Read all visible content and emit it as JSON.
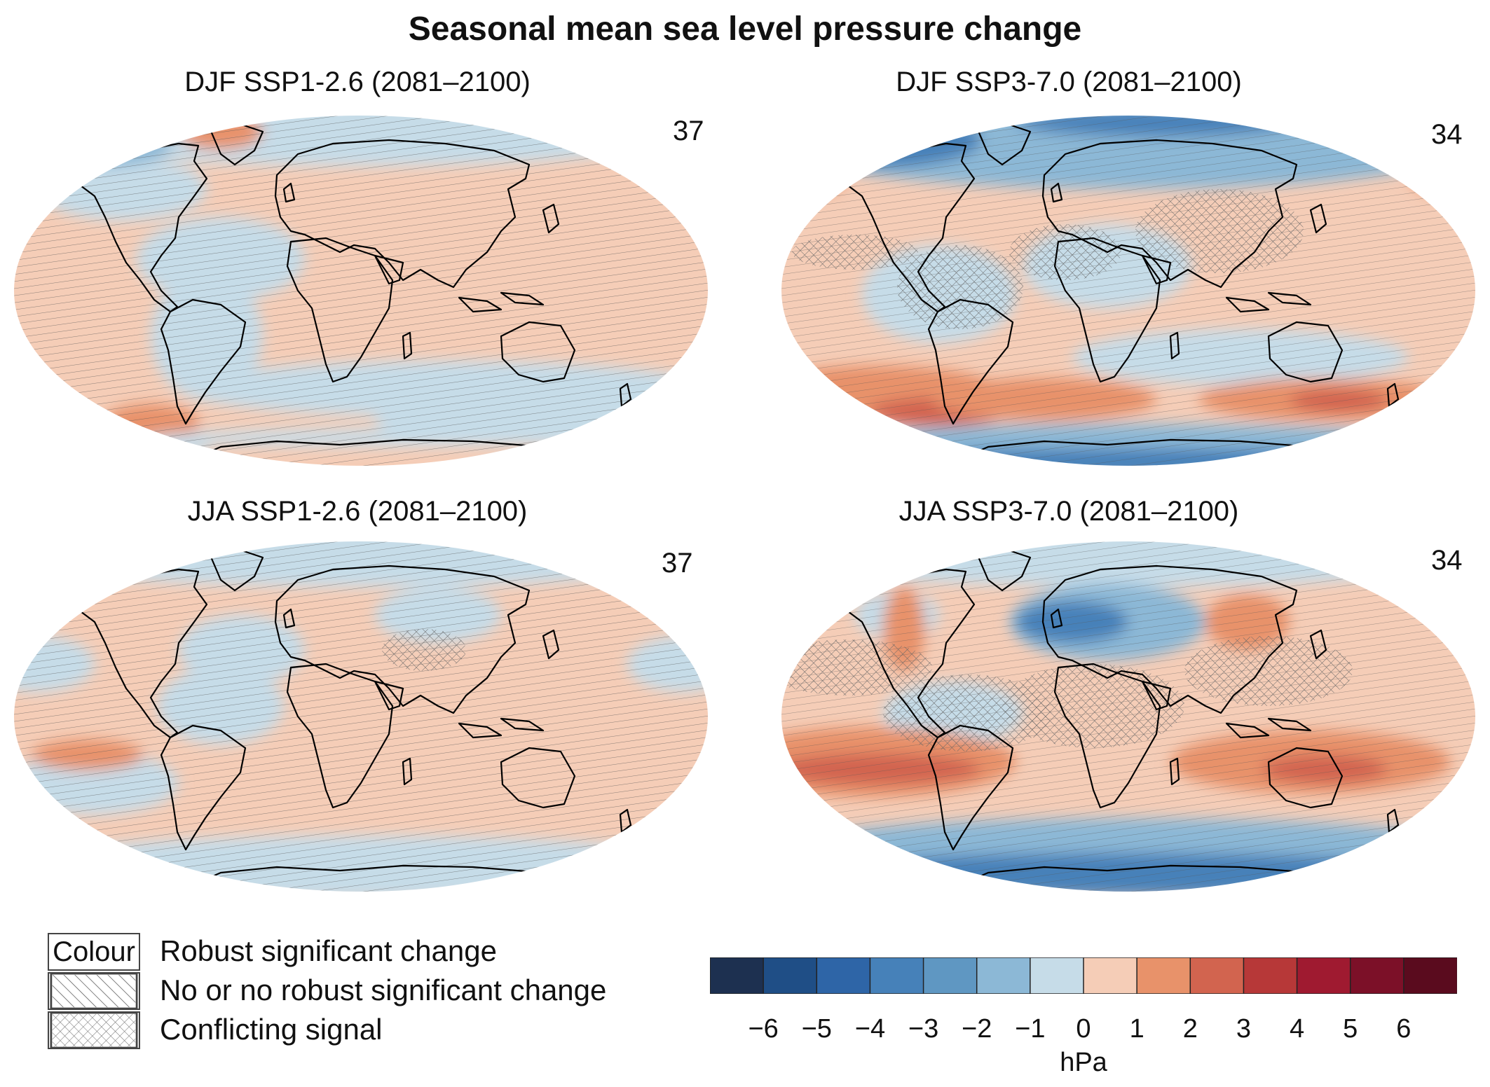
{
  "title": "Seasonal mean sea level pressure change",
  "panels": [
    {
      "title": "DJF SSP1-2.6 (2081–2100)",
      "model_count": "37",
      "scenario": "low"
    },
    {
      "title": "DJF SSP3-7.0 (2081–2100)",
      "model_count": "34",
      "scenario": "high"
    },
    {
      "title": "JJA SSP1-2.6 (2081–2100)",
      "model_count": "37",
      "scenario": "low"
    },
    {
      "title": "JJA SSP3-7.0 (2081–2100)",
      "model_count": "34",
      "scenario": "high"
    }
  ],
  "legend": {
    "colour_swatch_text": "Colour",
    "items": [
      {
        "label": "Robust significant change",
        "pattern": "plain"
      },
      {
        "label": "No or no robust significant change",
        "pattern": "diagonal-hatch"
      },
      {
        "label": "Conflicting signal",
        "pattern": "cross-hatch"
      }
    ]
  },
  "colorbar": {
    "unit": "hPa",
    "ticks": [
      "−6",
      "−5",
      "−4",
      "−3",
      "−2",
      "−1",
      "0",
      "1",
      "2",
      "3",
      "4",
      "5",
      "6"
    ],
    "colors": [
      "#1d3050",
      "#1f4e86",
      "#2e65a7",
      "#4681b9",
      "#5f97c2",
      "#8cb8d6",
      "#c6dce8",
      "#f5cdb7",
      "#e8926a",
      "#d2644f",
      "#b73838",
      "#9f1a30",
      "#7c1028",
      "#5a0b1e"
    ]
  },
  "colors": {
    "ocean_light_blue": "#c6dce8",
    "light_red": "#f5cdb7",
    "medium_red": "#e8926a",
    "dark_red": "#d2644f",
    "medium_blue": "#8cb8d6",
    "dark_blue": "#4681b9",
    "coastline": "#000000",
    "hatch": "#555555"
  }
}
